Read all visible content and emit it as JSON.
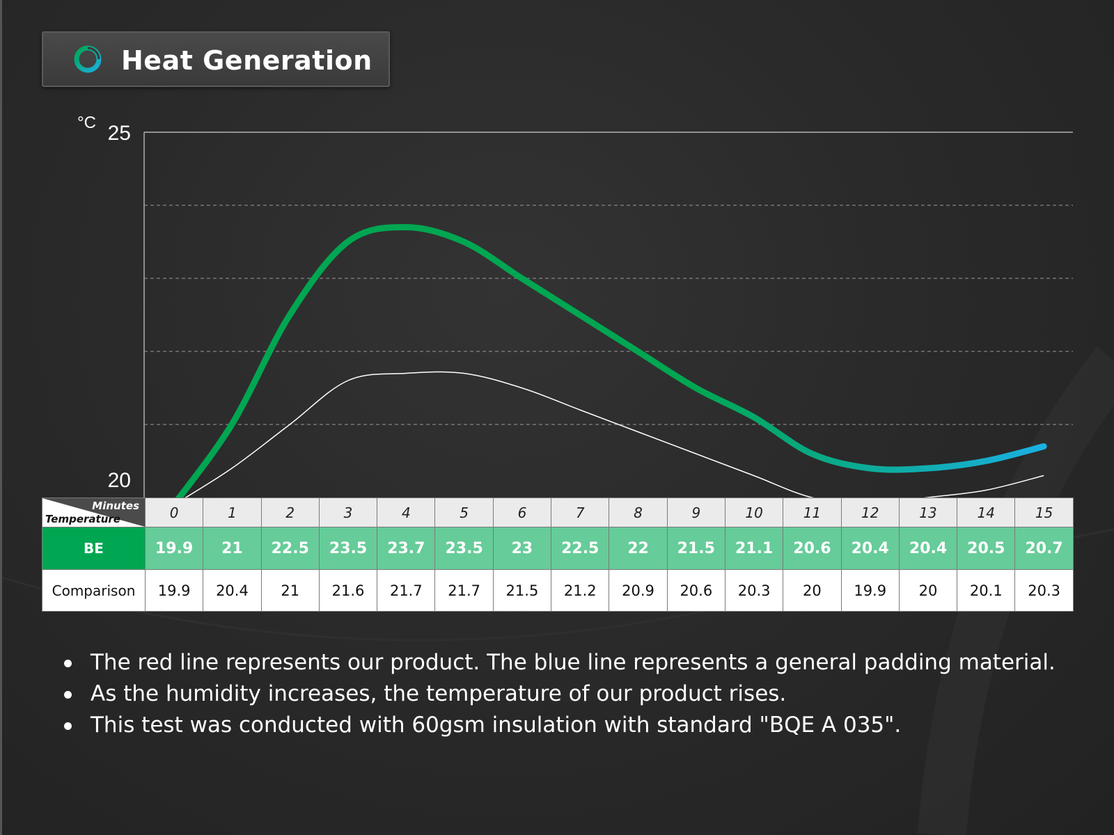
{
  "title": "Heat Generation",
  "accent_colors": {
    "green": "#00a651",
    "light_green": "#66cc99",
    "blue": "#1ab0e0",
    "comparison_line": "#ffffff"
  },
  "chart_data": {
    "type": "line",
    "ylabel": "°C",
    "ylim": [
      20,
      25
    ],
    "y_ticks": [
      "25",
      "20"
    ],
    "grid": "dashed horizontal",
    "x_header": "Minutes",
    "row_header": "Temperature",
    "x": [
      "0",
      "1",
      "2",
      "3",
      "4",
      "5",
      "6",
      "7",
      "8",
      "9",
      "10",
      "11",
      "12",
      "13",
      "14",
      "15"
    ],
    "series": [
      {
        "name": "BE",
        "values": [
          19.9,
          21,
          22.5,
          23.5,
          23.7,
          23.5,
          23,
          22.5,
          22,
          21.5,
          21.1,
          20.6,
          20.4,
          20.4,
          20.5,
          20.7
        ]
      },
      {
        "name": "Comparison",
        "values": [
          19.9,
          20.4,
          21,
          21.6,
          21.7,
          21.7,
          21.5,
          21.2,
          20.9,
          20.6,
          20.3,
          20,
          19.9,
          20,
          20.1,
          20.3
        ]
      }
    ]
  },
  "table": {
    "corner_top": "Minutes",
    "corner_bottom": "Temperature",
    "minutes": [
      "0",
      "1",
      "2",
      "3",
      "4",
      "5",
      "6",
      "7",
      "8",
      "9",
      "10",
      "11",
      "12",
      "13",
      "14",
      "15"
    ],
    "be_label": "BE",
    "be_values": [
      "19.9",
      "21",
      "22.5",
      "23.5",
      "23.7",
      "23.5",
      "23",
      "22.5",
      "22",
      "21.5",
      "21.1",
      "20.6",
      "20.4",
      "20.4",
      "20.5",
      "20.7"
    ],
    "cmp_label": "Comparison",
    "cmp_values": [
      "19.9",
      "20.4",
      "21",
      "21.6",
      "21.7",
      "21.7",
      "21.5",
      "21.2",
      "20.9",
      "20.6",
      "20.3",
      "20",
      "19.9",
      "20",
      "20.1",
      "20.3"
    ]
  },
  "notes": [
    "The red line represents our product. The blue line represents a general padding material.",
    "As the humidity increases, the temperature of our product rises.",
    "This test was conducted with 60gsm insulation with standard \"BQE A 035\"."
  ]
}
